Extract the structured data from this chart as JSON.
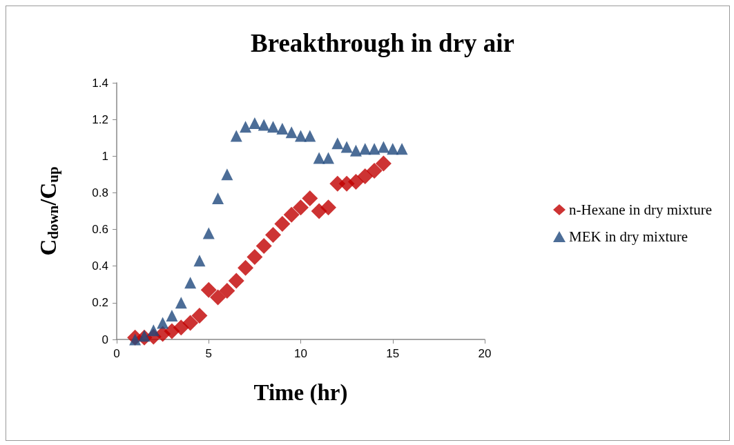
{
  "chart_data": {
    "type": "scatter",
    "title": "Breakthrough in dry air",
    "xlabel": "Time (hr)",
    "ylabel": "C$_{down}$/C$_{up}$",
    "xlim": [
      0,
      20
    ],
    "xticks": [
      0,
      5,
      10,
      15,
      20
    ],
    "ylim": [
      0,
      1.4
    ],
    "yticks": [
      0,
      0.2,
      0.4,
      0.6,
      0.8,
      1,
      1.2,
      1.4
    ],
    "grid": false,
    "legend": "right",
    "series": [
      {
        "name": "n-Hexane in dry mixture",
        "color": "#c00000",
        "marker": "diamond",
        "x": [
          1,
          1.5,
          2,
          2.5,
          3,
          3.5,
          4,
          4.5,
          5,
          5.5,
          6,
          6.5,
          7,
          7.5,
          8,
          8.5,
          9,
          9.5,
          10,
          10.5,
          11,
          11.5,
          12,
          12.5,
          13,
          13.5,
          14,
          14.5
        ],
        "values": [
          0.01,
          0.01,
          0.015,
          0.03,
          0.045,
          0.065,
          0.09,
          0.13,
          0.27,
          0.23,
          0.265,
          0.32,
          0.39,
          0.45,
          0.51,
          0.57,
          0.63,
          0.68,
          0.72,
          0.77,
          0.7,
          0.72,
          0.85,
          0.85,
          0.86,
          0.89,
          0.92,
          0.96
        ]
      },
      {
        "name": "MEK in dry mixture",
        "color": "#1f497d",
        "marker": "triangle",
        "x": [
          1,
          1.5,
          2,
          2.5,
          3,
          3.5,
          4,
          4.5,
          5,
          5.5,
          6,
          6.5,
          7,
          7.5,
          8,
          8.5,
          9,
          9.5,
          10,
          10.5,
          11,
          11.5,
          12,
          12.5,
          13,
          13.5,
          14,
          14.5,
          15,
          15.5
        ],
        "values": [
          0,
          0.02,
          0.05,
          0.09,
          0.13,
          0.2,
          0.31,
          0.43,
          0.58,
          0.77,
          0.9,
          1.11,
          1.16,
          1.18,
          1.17,
          1.16,
          1.15,
          1.13,
          1.11,
          1.11,
          0.99,
          0.99,
          1.07,
          1.05,
          1.03,
          1.04,
          1.04,
          1.05,
          1.04,
          1.04
        ]
      }
    ]
  }
}
